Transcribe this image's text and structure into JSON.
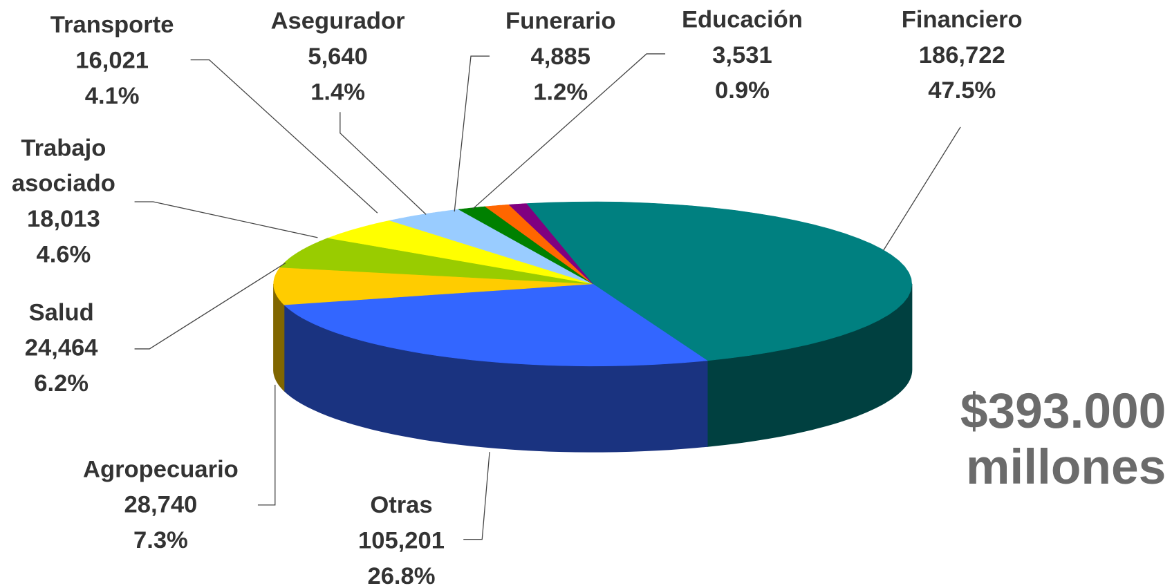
{
  "chart_data": {
    "type": "pie3d",
    "categories": [
      "Financiero",
      "Otras",
      "Agropecuario",
      "Salud",
      "Trabajo asociado",
      "Transporte",
      "Asegurador",
      "Funerario",
      "Educación"
    ],
    "values": [
      186722,
      105201,
      28740,
      24464,
      18013,
      16021,
      5640,
      4885,
      3531
    ],
    "value_labels": [
      "186,722",
      "105,201",
      "28,740",
      "24,464",
      "18,013",
      "16,021",
      "5,640",
      "4,885",
      "3,531"
    ],
    "percents": [
      47.5,
      26.8,
      7.3,
      6.2,
      4.6,
      4.1,
      1.4,
      1.2,
      0.9
    ],
    "percent_labels": [
      "47.5%",
      "26.8%",
      "7.3%",
      "6.2%",
      "4.6%",
      "4.1%",
      "1.4%",
      "1.2%",
      "0.9%"
    ],
    "colors": [
      "#008080",
      "#3366ff",
      "#ffcc00",
      "#99cc00",
      "#ffff00",
      "#99ccff",
      "#008000",
      "#ff6600",
      "#800080"
    ],
    "annotation": [
      "$393.000",
      "millones"
    ]
  }
}
